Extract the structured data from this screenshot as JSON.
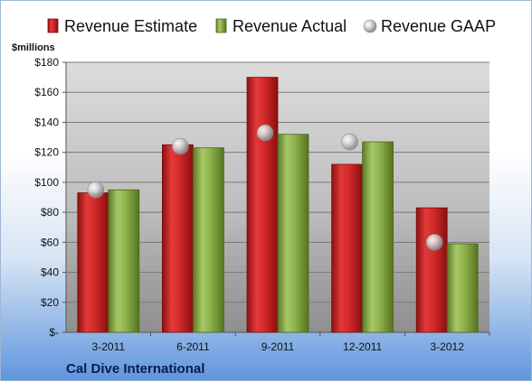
{
  "chart_data": {
    "type": "bar",
    "unit_label": "$millions",
    "company": "Cal Dive International",
    "categories": [
      "3-2011",
      "6-2011",
      "9-2011",
      "12-2011",
      "3-2012"
    ],
    "series": [
      {
        "name": "Revenue Estimate",
        "kind": "bar",
        "color": "#d42a2a",
        "values": [
          93,
          125,
          170,
          112,
          83
        ]
      },
      {
        "name": "Revenue Actual",
        "kind": "bar",
        "color": "#8fb34e",
        "values": [
          95,
          123,
          132,
          127,
          59
        ]
      },
      {
        "name": "Revenue GAAP",
        "kind": "marker",
        "color": "#c8c8c8",
        "values": [
          95,
          124,
          133,
          127,
          60
        ]
      }
    ],
    "ylim": [
      0,
      180
    ],
    "y_ticks": [
      0,
      20,
      40,
      60,
      80,
      100,
      120,
      140,
      160,
      180
    ],
    "y_tick_labels": [
      "$-",
      "$20",
      "$40",
      "$60",
      "$80",
      "$100",
      "$120",
      "$140",
      "$160",
      "$180"
    ],
    "grid": true,
    "legend_position": "top"
  }
}
